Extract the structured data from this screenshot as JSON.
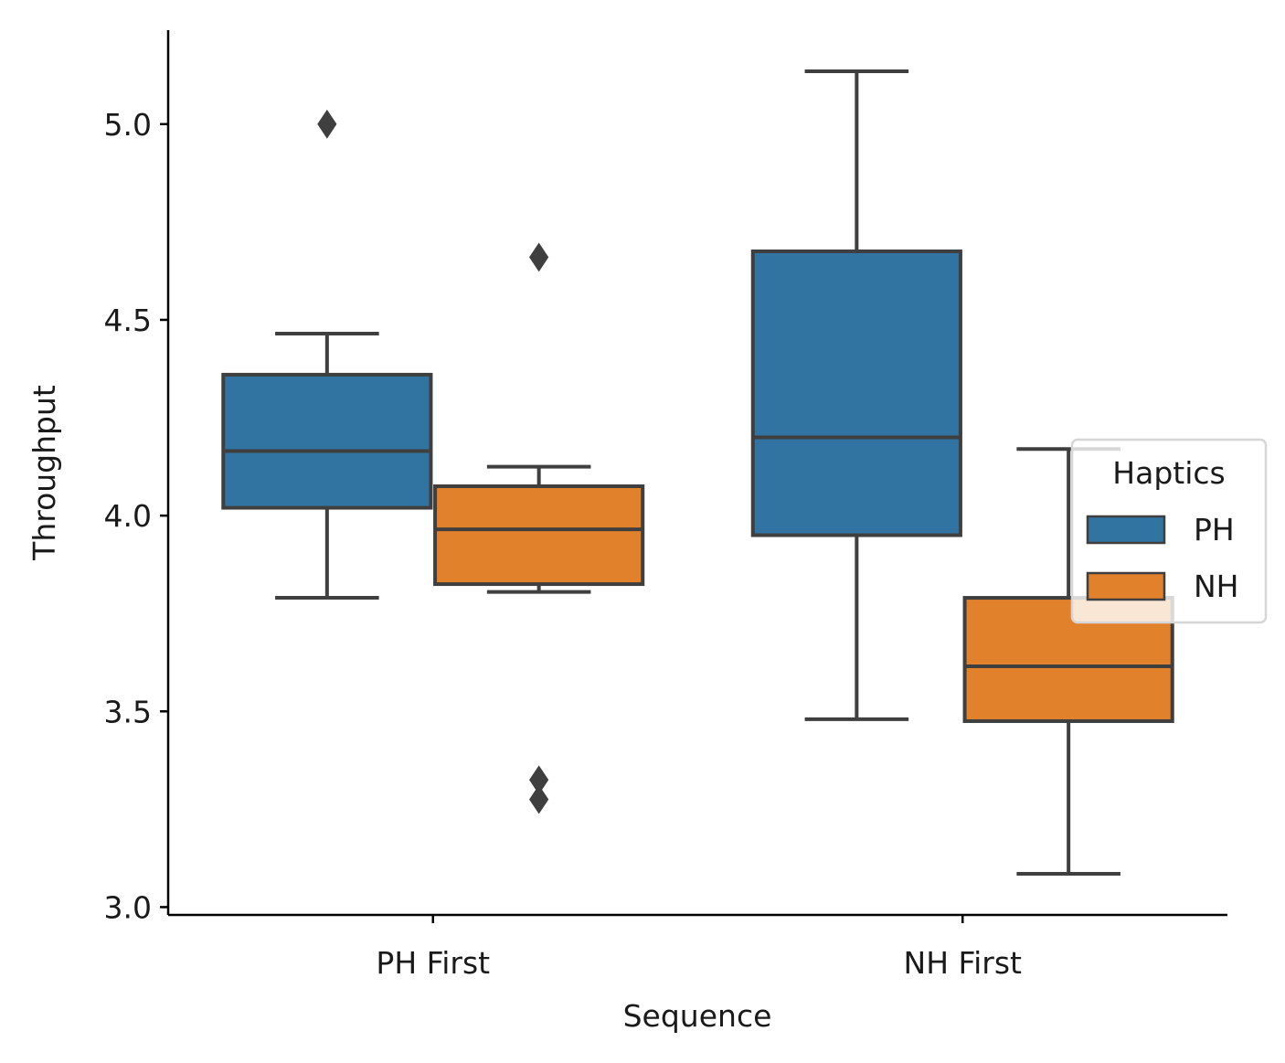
{
  "chart_data": {
    "type": "box",
    "title": "",
    "xlabel": "Sequence",
    "ylabel": "Throughput",
    "categories": [
      "PH First",
      "NH First"
    ],
    "ylim": [
      2.98,
      5.24
    ],
    "yticks": [
      "3.0",
      "3.5",
      "4.0",
      "4.5",
      "5.0"
    ],
    "ytick_values": [
      3.0,
      3.5,
      4.0,
      4.5,
      5.0
    ],
    "legend": {
      "title": "Haptics",
      "placement": "center-right"
    },
    "series": [
      {
        "name": "PH",
        "color": "#3274a1",
        "boxes": [
          {
            "category": "PH First",
            "whislo": 3.79,
            "q1": 4.02,
            "med": 4.165,
            "q3": 4.36,
            "whishi": 4.465,
            "fliers": [
              5.0
            ]
          },
          {
            "category": "NH First",
            "whislo": 3.48,
            "q1": 3.95,
            "med": 4.2,
            "q3": 4.675,
            "whishi": 5.135,
            "fliers": []
          }
        ]
      },
      {
        "name": "NH",
        "color": "#e1812c",
        "boxes": [
          {
            "category": "PH First",
            "whislo": 3.805,
            "q1": 3.825,
            "med": 3.965,
            "q3": 4.075,
            "whishi": 4.125,
            "fliers": [
              4.66,
              3.325,
              3.275
            ]
          },
          {
            "category": "NH First",
            "whislo": 3.085,
            "q1": 3.475,
            "med": 3.615,
            "q3": 3.79,
            "whishi": 4.17,
            "fliers": []
          }
        ]
      }
    ]
  }
}
